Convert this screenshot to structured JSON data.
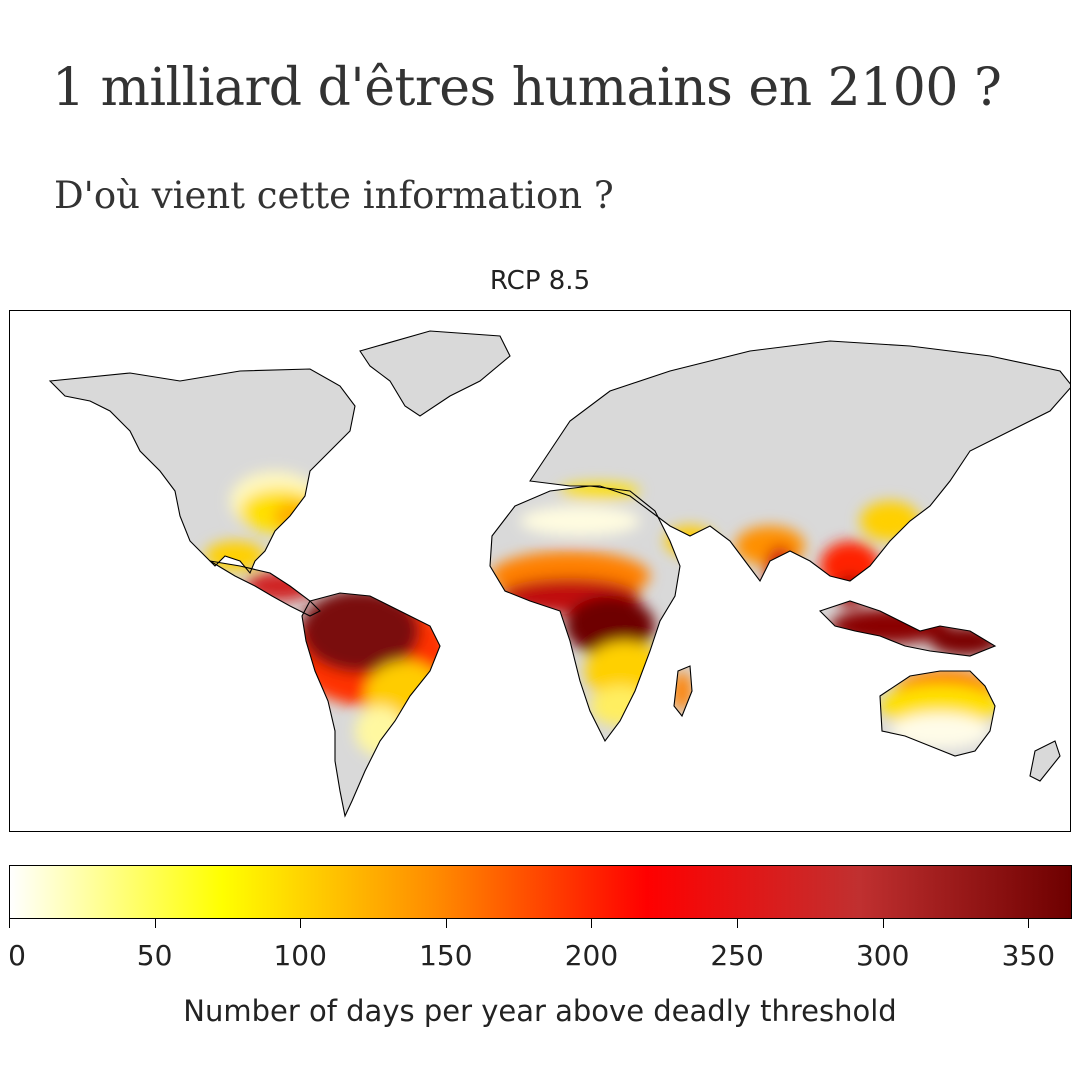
{
  "page": {
    "title": "1 milliard d'êtres humains en 2100 ?",
    "subtitle": "D'où vient cette information ?"
  },
  "map": {
    "title": "RCP 8.5",
    "land_color": "#d9d9d9",
    "coastline_color": "#000000",
    "colormap": [
      "#ffffff",
      "#ffff00",
      "#ff8c00",
      "#ff0000",
      "#c03030",
      "#6e0000"
    ],
    "colorbar": {
      "label": "Number of days per year above deadly threshold",
      "min": 0,
      "max": 365,
      "ticks": [
        "0",
        "50",
        "100",
        "150",
        "200",
        "250",
        "300",
        "350"
      ],
      "tick_values": [
        0,
        50,
        100,
        150,
        200,
        250,
        300,
        350
      ]
    }
  }
}
